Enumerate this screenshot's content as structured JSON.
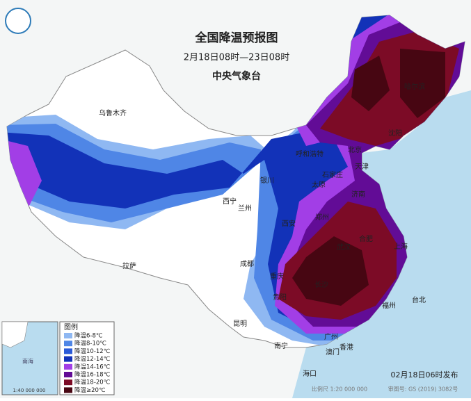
{
  "header": {
    "title": "全国降温预报图",
    "subtitle": "2月18日08时—23日08时",
    "issuer": "中央气象台"
  },
  "legend": {
    "title": "图例",
    "items": [
      {
        "label": "降温6-8℃",
        "color": "#8fb8f2"
      },
      {
        "label": "降温8-10℃",
        "color": "#4f86e6"
      },
      {
        "label": "降温10-12℃",
        "color": "#2a5ad8"
      },
      {
        "label": "降温12-14℃",
        "color": "#1232b8"
      },
      {
        "label": "降温14-16℃",
        "color": "#a23ee6"
      },
      {
        "label": "降温16-18℃",
        "color": "#620c96"
      },
      {
        "label": "降温18-20℃",
        "color": "#7c0b26"
      },
      {
        "label": "降温≥20℃",
        "color": "#470612"
      }
    ]
  },
  "cities": [
    "乌鲁木齐",
    "拉萨",
    "西宁",
    "兰州",
    "银川",
    "呼和浩特",
    "北京",
    "天津",
    "石家庄",
    "太原",
    "济南",
    "郑州",
    "西安",
    "成都",
    "重庆",
    "昆明",
    "贵阳",
    "南宁",
    "广州",
    "香港",
    "澳门",
    "海口",
    "台北",
    "福州",
    "长沙",
    "武汉",
    "合肥",
    "上海",
    "沈阳",
    "哈尔滨"
  ],
  "inset": {
    "sea_label": "南海",
    "scale": "1:40 000 000"
  },
  "footer": {
    "published": "02月18日06时发布",
    "scale": "比例尺 1:20 000 000",
    "approval": "审图号: GS (2019) 3082号"
  }
}
